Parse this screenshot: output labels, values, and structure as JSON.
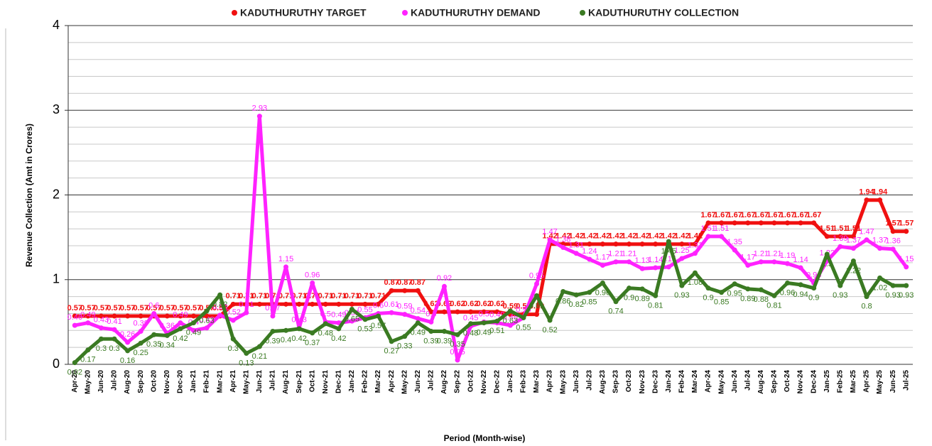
{
  "chart_data": {
    "type": "line",
    "ylabel": "Revenue Collection (Amt in Crores)",
    "xlabel": "Period (Month-wise)",
    "categories": [
      "Apr-20",
      "May-20",
      "Jun-20",
      "Jul-20",
      "Aug-20",
      "Sep-20",
      "Oct-20",
      "Nov-20",
      "Dec-20",
      "Jan-21",
      "Feb-21",
      "Mar-21",
      "Apr-21",
      "May-21",
      "Jun-21",
      "Jul-21",
      "Aug-21",
      "Sep-21",
      "Oct-21",
      "Nov-21",
      "Dec-21",
      "Jan-22",
      "Feb-22",
      "Mar-22",
      "Apr-22",
      "May-22",
      "Jun-22",
      "Jul-22",
      "Aug-22",
      "Sep-22",
      "Oct-22",
      "Nov-22",
      "Dec-22",
      "Jan-23",
      "Feb-23",
      "Mar-23",
      "Apr-23",
      "May-23",
      "Jun-23",
      "Jul-23",
      "Aug-23",
      "Sep-23",
      "Oct-23",
      "Nov-23",
      "Dec-23",
      "Jan-24",
      "Feb-24",
      "Mar-24",
      "Apr-24",
      "May-24",
      "Jun-24",
      "Jul-24",
      "Aug-24",
      "Sep-24",
      "Oct-24",
      "Nov-24",
      "Dec-24",
      "Jan-25",
      "Feb-25",
      "Mar-25",
      "Apr-25",
      "May-25",
      "Jun-25",
      "Jul-25"
    ],
    "series": [
      {
        "name": "KADUTHURUTHY TARGET",
        "color": "#f01010",
        "values": [
          0.57,
          0.57,
          0.57,
          0.57,
          0.57,
          0.57,
          0.57,
          0.57,
          0.57,
          0.57,
          0.57,
          0.57,
          0.71,
          0.71,
          0.71,
          0.71,
          0.71,
          0.71,
          0.71,
          0.71,
          0.71,
          0.71,
          0.71,
          0.71,
          0.87,
          0.87,
          0.87,
          0.62,
          0.62,
          0.62,
          0.62,
          0.62,
          0.62,
          0.59,
          0.59,
          0.59,
          1.42,
          1.42,
          1.42,
          1.42,
          1.42,
          1.42,
          1.42,
          1.42,
          1.42,
          1.42,
          1.42,
          1.42,
          1.67,
          1.67,
          1.67,
          1.67,
          1.67,
          1.67,
          1.67,
          1.67,
          1.67,
          1.51,
          1.51,
          1.51,
          1.94,
          1.94,
          1.57,
          1.57
        ]
      },
      {
        "name": "KADUTHURUTHY DEMAND",
        "color": "#ff22ff",
        "values": [
          0.46,
          0.49,
          0.43,
          0.41,
          0.26,
          0.39,
          0.6,
          0.36,
          0.49,
          0.4,
          0.43,
          0.58,
          0.52,
          0.61,
          2.93,
          0.57,
          1.15,
          0.43,
          0.96,
          0.5,
          0.49,
          0.51,
          0.55,
          0.6,
          0.61,
          0.59,
          0.54,
          0.5,
          0.92,
          0.05,
          0.45,
          0.5,
          0.49,
          0.46,
          0.55,
          0.95,
          1.47,
          1.38,
          1.31,
          1.24,
          1.17,
          1.21,
          1.21,
          1.13,
          1.14,
          1.15,
          1.25,
          1.31,
          1.51,
          1.51,
          1.35,
          1.17,
          1.21,
          1.21,
          1.19,
          1.14,
          0.96,
          1.22,
          1.39,
          1.37,
          1.47,
          1.37,
          1.36,
          1.15
        ]
      },
      {
        "name": "KADUTHURUTHY COLLECTION",
        "color": "#3a7a22",
        "values": [
          0.02,
          0.17,
          0.3,
          0.3,
          0.16,
          0.25,
          0.35,
          0.34,
          0.42,
          0.49,
          0.63,
          0.82,
          0.3,
          0.13,
          0.21,
          0.39,
          0.4,
          0.42,
          0.37,
          0.48,
          0.42,
          0.65,
          0.53,
          0.57,
          0.27,
          0.33,
          0.49,
          0.39,
          0.39,
          0.35,
          0.48,
          0.49,
          0.51,
          0.63,
          0.55,
          0.81,
          0.52,
          0.86,
          0.82,
          0.85,
          0.96,
          0.74,
          0.9,
          0.89,
          0.81,
          1.45,
          0.93,
          1.08,
          0.9,
          0.85,
          0.95,
          0.89,
          0.88,
          0.81,
          0.96,
          0.94,
          0.9,
          1.3,
          0.93,
          1.22,
          0.8,
          1.02,
          0.93,
          0.93
        ]
      }
    ],
    "ylim": [
      0,
      4
    ],
    "yticks": [
      0,
      1,
      2,
      3,
      4
    ],
    "grid": true,
    "legend": "top"
  }
}
